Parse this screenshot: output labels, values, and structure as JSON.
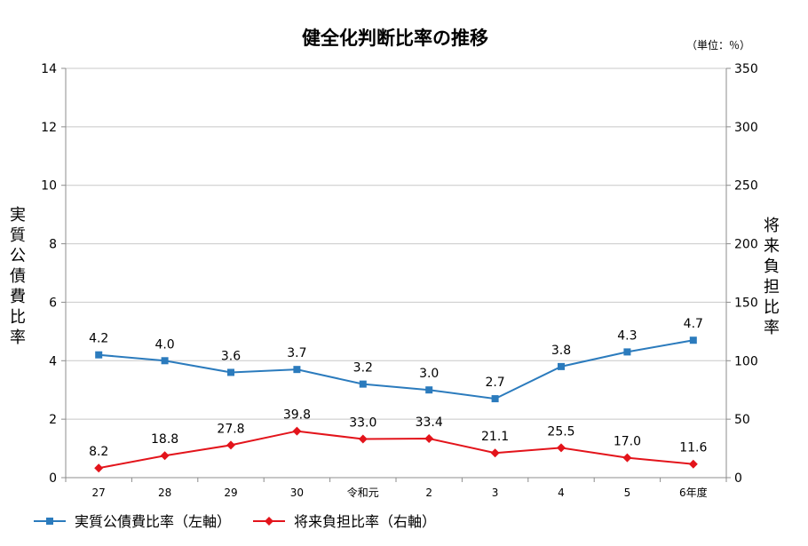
{
  "chart_data": {
    "type": "line",
    "title": "健全化判断比率の推移",
    "unit_note": "（単位：％）",
    "categories": [
      "27",
      "28",
      "29",
      "30",
      "令和元",
      "2",
      "3",
      "4",
      "5",
      "6年度"
    ],
    "y_left": {
      "label": "実質公債費比率",
      "lim": [
        0,
        14
      ],
      "ticks": [
        0,
        2,
        4,
        6,
        8,
        10,
        12,
        14
      ]
    },
    "y_right": {
      "label": "将来負担比率",
      "lim": [
        0,
        350
      ],
      "ticks": [
        0,
        50,
        100,
        150,
        200,
        250,
        300,
        350
      ]
    },
    "grid": true,
    "legend_position": "bottom-left",
    "series": [
      {
        "name": "実質公債費比率（左軸）",
        "axis": "left",
        "marker": "square",
        "color": "#2b7bbd",
        "values": [
          4.2,
          4.0,
          3.6,
          3.7,
          3.2,
          3.0,
          2.7,
          3.8,
          4.3,
          4.7
        ],
        "labels": [
          "4.2",
          "4.0",
          "3.6",
          "3.7",
          "3.2",
          "3.0",
          "2.7",
          "3.8",
          "4.3",
          "4.7"
        ]
      },
      {
        "name": "将来負担比率（右軸）",
        "axis": "right",
        "marker": "diamond",
        "color": "#e3141b",
        "values": [
          8.2,
          18.8,
          27.8,
          39.8,
          33.0,
          33.4,
          21.1,
          25.5,
          17.0,
          11.6
        ],
        "labels": [
          "8.2",
          "18.8",
          "27.8",
          "39.8",
          "33.0",
          "33.4",
          "21.1",
          "25.5",
          "17.0",
          "11.6"
        ]
      }
    ]
  }
}
